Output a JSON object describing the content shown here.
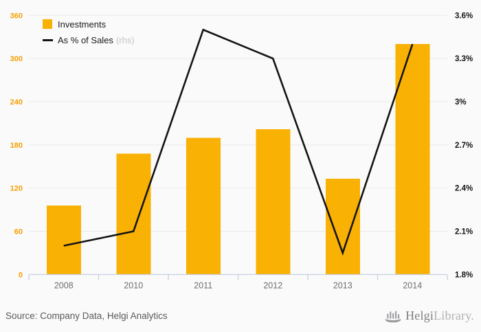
{
  "chart_data": {
    "type": "bar",
    "subtype": "bar-with-line-overlay",
    "title": "",
    "categories": [
      "2008",
      "2010",
      "2011",
      "2012",
      "2013",
      "2014"
    ],
    "series": [
      {
        "name": "Investments",
        "type": "bar",
        "axis": "left",
        "color": "#f9b104",
        "values": [
          96,
          168,
          190,
          202,
          133,
          320
        ]
      },
      {
        "name": "As % of Sales",
        "type": "line",
        "axis": "right",
        "color": "#141414",
        "values": [
          2.0,
          2.1,
          3.5,
          3.3,
          1.95,
          3.4
        ]
      }
    ],
    "left_axis": {
      "min": 0,
      "max": 360,
      "ticks": [
        "0",
        "60",
        "120",
        "180",
        "240",
        "300",
        "360"
      ],
      "label_color": "#f59e00"
    },
    "right_axis": {
      "min": 1.8,
      "max": 3.6,
      "ticks": [
        "1.8%",
        "2.1%",
        "2.4%",
        "2.7%",
        "3%",
        "3.3%",
        "3.6%"
      ],
      "label_color": "#141414"
    },
    "grid": true,
    "gridline_color": "#e9e9e9",
    "axis_line_color": "#c8d0e2",
    "legend_position": "top-left",
    "legend": [
      {
        "label": "Investments",
        "suffix": ""
      },
      {
        "label": "As % of Sales",
        "suffix": "(rhs)"
      }
    ]
  },
  "footer": {
    "source": "Source: Company Data, Helgi Analytics",
    "logo": {
      "name": "Helgi",
      "name2": "Library."
    }
  }
}
